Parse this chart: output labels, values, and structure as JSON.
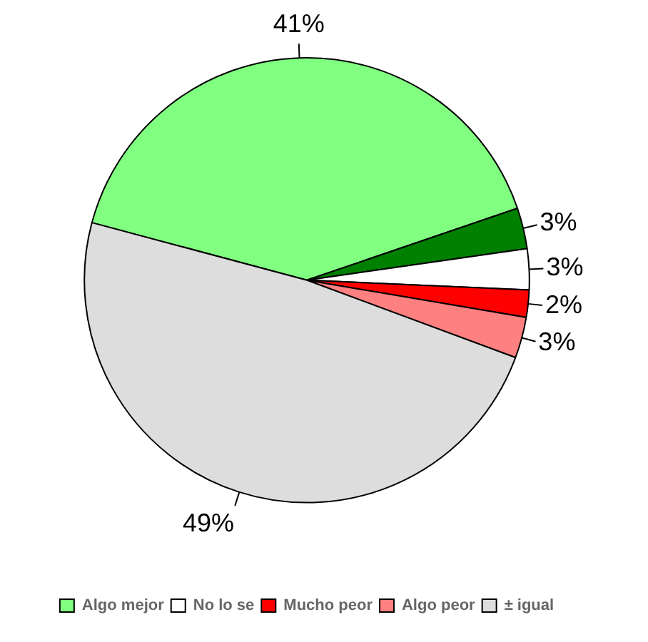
{
  "chart_data": {
    "type": "pie",
    "categories": [
      "Algo mejor",
      null,
      "No lo se",
      "Mucho peor",
      "Algo peor",
      "± igual"
    ],
    "values": [
      41,
      3,
      3,
      2,
      3,
      49
    ],
    "colors": [
      "#80ff80",
      "#008000",
      "#ffffff",
      "#ff0000",
      "#ff8080",
      "#dddddd"
    ],
    "value_labels": [
      "41%",
      "3%",
      "3%",
      "2%",
      "3%",
      "49%"
    ],
    "legend": "bottom"
  }
}
